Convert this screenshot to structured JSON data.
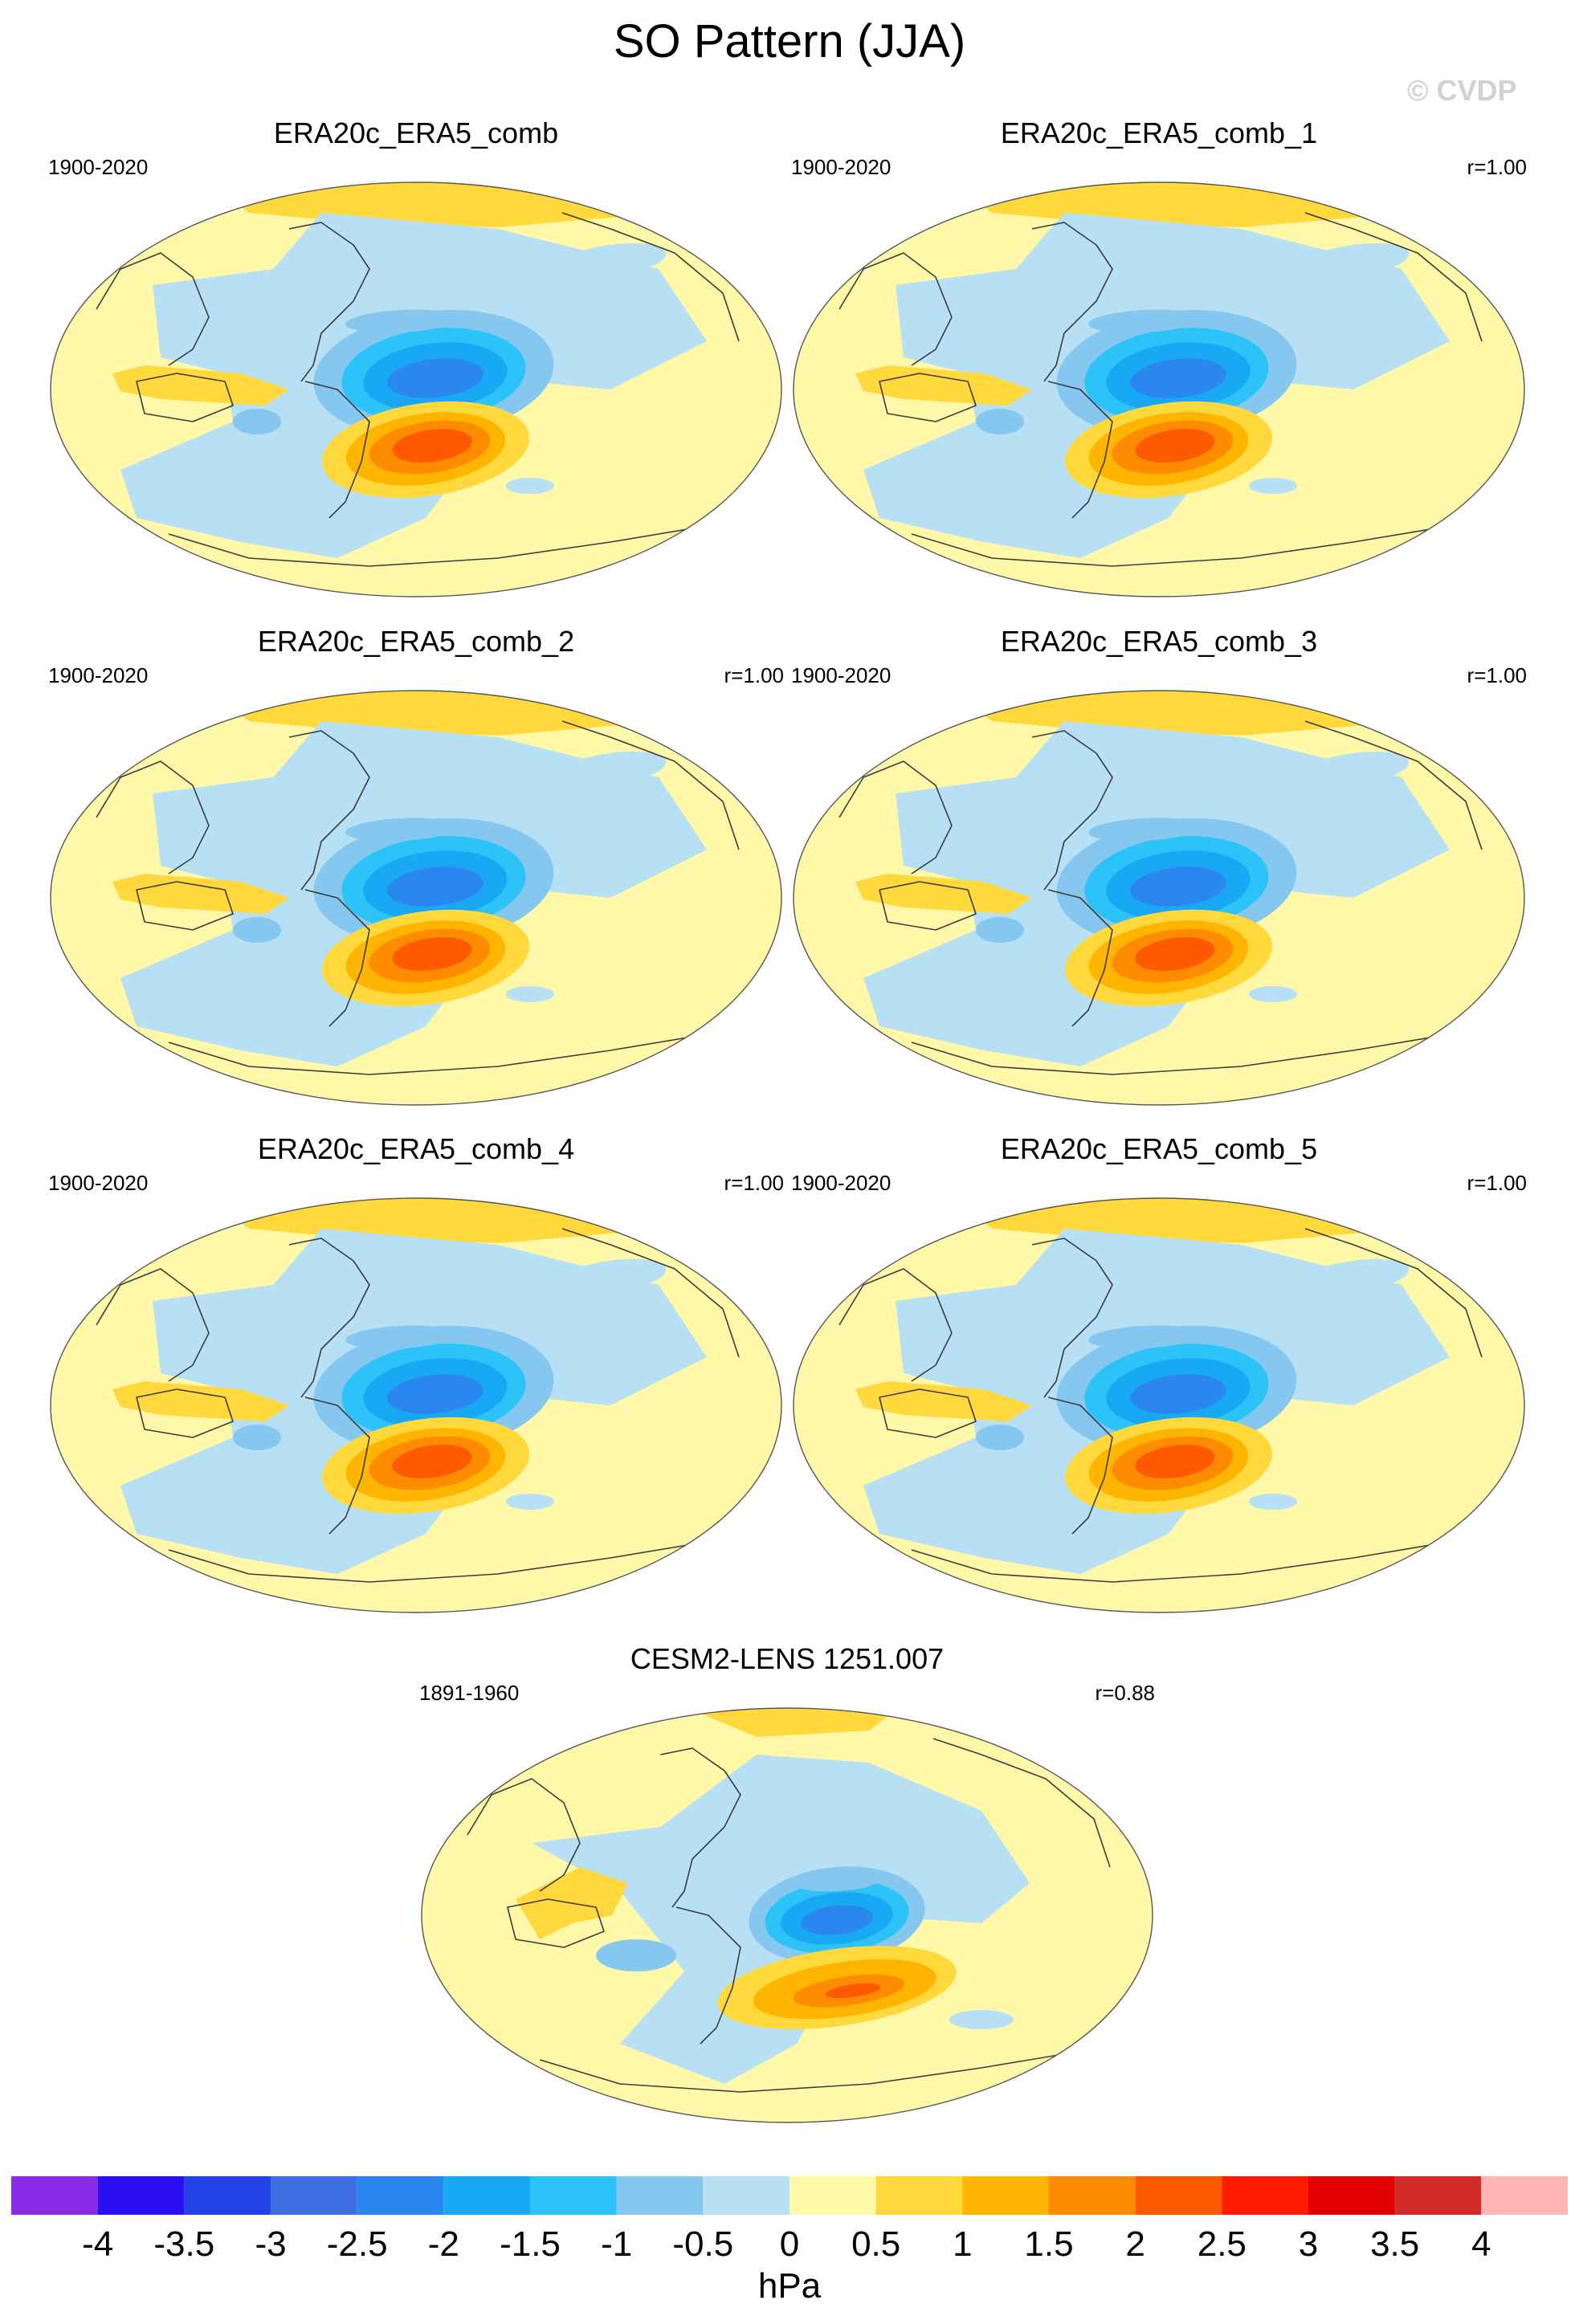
{
  "title": "SO Pattern (JJA)",
  "watermark": "© CVDP",
  "panels": [
    {
      "title": "ERA20c_ERA5_comb",
      "period": "1900-2020",
      "corr": ""
    },
    {
      "title": "ERA20c_ERA5_comb_1",
      "period": "1900-2020",
      "corr": "r=1.00"
    },
    {
      "title": "ERA20c_ERA5_comb_2",
      "period": "1900-2020",
      "corr": "r=1.00"
    },
    {
      "title": "ERA20c_ERA5_comb_3",
      "period": "1900-2020",
      "corr": "r=1.00"
    },
    {
      "title": "ERA20c_ERA5_comb_4",
      "period": "1900-2020",
      "corr": "r=1.00"
    },
    {
      "title": "ERA20c_ERA5_comb_5",
      "period": "1900-2020",
      "corr": "r=1.00"
    },
    {
      "title": "CESM2-LENS 1251.007",
      "period": "1891-1960",
      "corr": "r=0.88"
    }
  ],
  "colorbar": {
    "units": "hPa",
    "labels": [
      "-4",
      "-3.5",
      "-3",
      "-2.5",
      "-2",
      "-1.5",
      "-1",
      "-0.5",
      "0",
      "0.5",
      "1",
      "1.5",
      "2",
      "2.5",
      "3",
      "3.5",
      "4"
    ],
    "colors": [
      "#8a2be8",
      "#2a10f0",
      "#2244e6",
      "#3d6fe0",
      "#2b86f0",
      "#18a8f4",
      "#2cc4f8",
      "#85c7ee",
      "#b8e0f4",
      "#fff8a8",
      "#ffd83c",
      "#ffb400",
      "#ff8c00",
      "#ff5a00",
      "#ff1a00",
      "#e00000",
      "#d42a2a",
      "#ffb4b4"
    ]
  }
}
